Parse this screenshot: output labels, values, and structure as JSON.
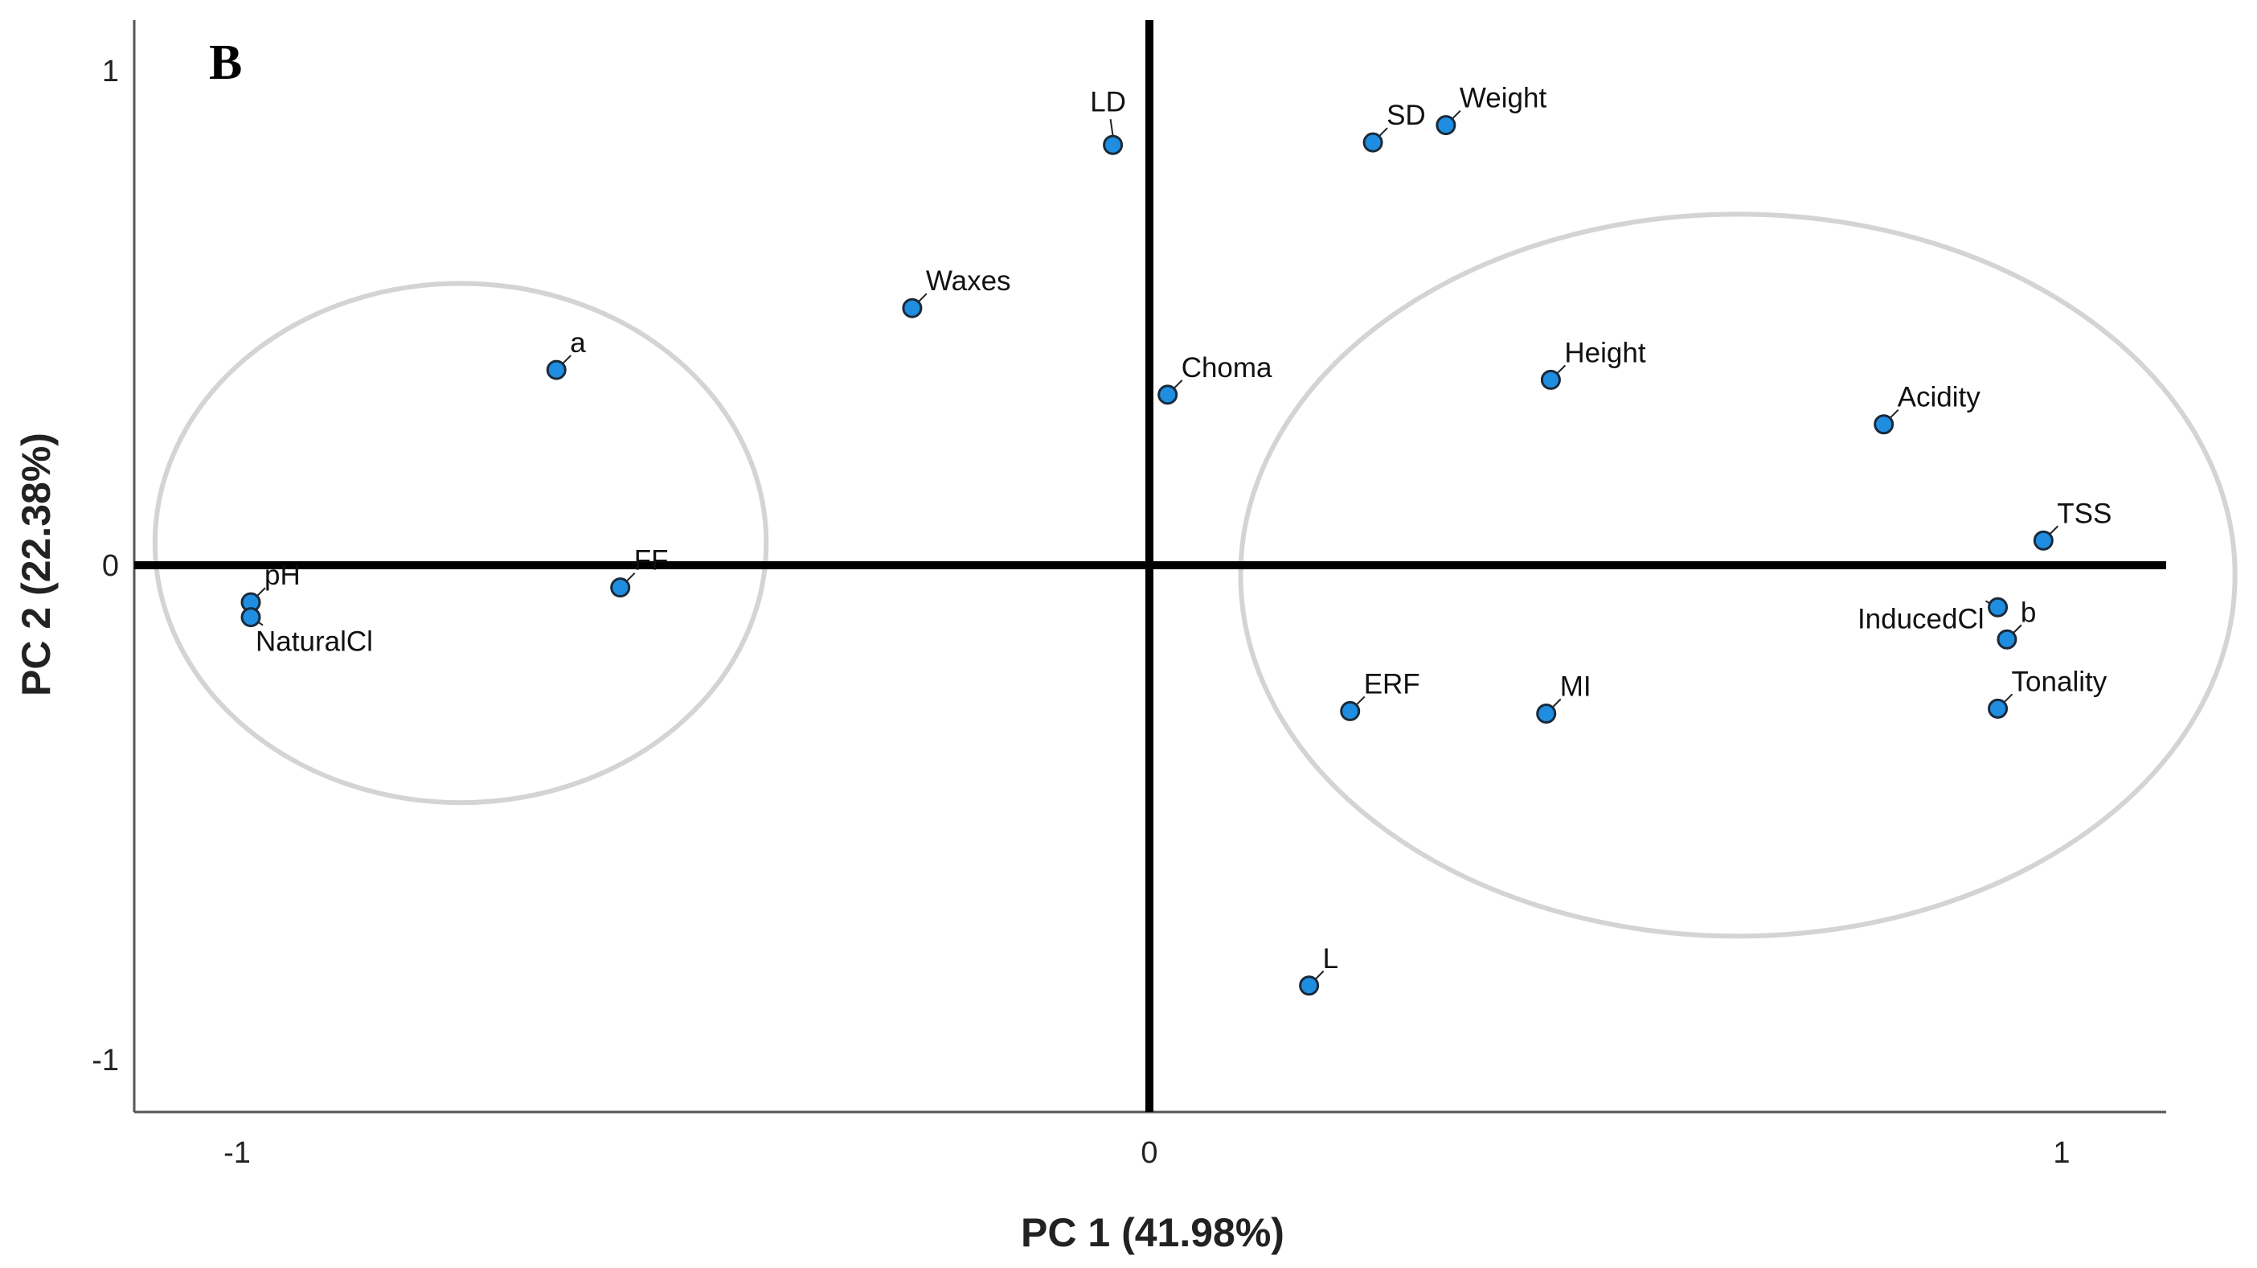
{
  "chart_data": {
    "type": "scatter",
    "panel_label": "B",
    "xlabel": "PC 1 (41.98%)",
    "ylabel": "PC 2 (22.38%)",
    "xlim": [
      -1.11,
      1.11
    ],
    "ylim": [
      -1.11,
      1.11
    ],
    "x_ticks": [
      {
        "value": -1,
        "label": "-1"
      },
      {
        "value": 0,
        "label": "0"
      },
      {
        "value": 1,
        "label": "1"
      }
    ],
    "y_ticks": [
      {
        "value": -1,
        "label": "-1"
      },
      {
        "value": 0,
        "label": "0"
      },
      {
        "value": 1,
        "label": "1"
      }
    ],
    "grid": false,
    "marker_color": "#1f8ee0",
    "marker_edge_color": "#1a2a3a",
    "group_outline_color": "#d4d4d4",
    "reference_lines": [
      {
        "axis": "x",
        "value": 0
      },
      {
        "axis": "y",
        "value": 0
      }
    ],
    "points": [
      {
        "label": "LD",
        "x": -0.04,
        "y": 0.85,
        "label_dir": "up"
      },
      {
        "label": "SD",
        "x": 0.245,
        "y": 0.855,
        "label_dir": "upright"
      },
      {
        "label": "Weight",
        "x": 0.325,
        "y": 0.89,
        "label_dir": "upright"
      },
      {
        "label": "Waxes",
        "x": -0.26,
        "y": 0.52,
        "label_dir": "upright"
      },
      {
        "label": "a",
        "x": -0.65,
        "y": 0.395,
        "label_dir": "upright"
      },
      {
        "label": "Choma",
        "x": 0.02,
        "y": 0.345,
        "label_dir": "upright"
      },
      {
        "label": "Height",
        "x": 0.44,
        "y": 0.375,
        "label_dir": "upright"
      },
      {
        "label": "Acidity",
        "x": 0.805,
        "y": 0.285,
        "label_dir": "upright"
      },
      {
        "label": "TSS",
        "x": 0.98,
        "y": 0.05,
        "label_dir": "upright"
      },
      {
        "label": "FF",
        "x": -0.58,
        "y": -0.045,
        "label_dir": "upright"
      },
      {
        "label": "pH",
        "x": -0.985,
        "y": -0.075,
        "label_dir": "upright"
      },
      {
        "label": "NaturalCl",
        "x": -0.985,
        "y": -0.105,
        "label_dir": "downright"
      },
      {
        "label": "InducedCl",
        "x": 0.93,
        "y": -0.085,
        "label_dir": "left"
      },
      {
        "label": "b",
        "x": 0.94,
        "y": -0.15,
        "label_dir": "upright"
      },
      {
        "label": "Tonality",
        "x": 0.93,
        "y": -0.29,
        "label_dir": "upright"
      },
      {
        "label": "ERF",
        "x": 0.22,
        "y": -0.295,
        "label_dir": "upright"
      },
      {
        "label": "MI",
        "x": 0.435,
        "y": -0.3,
        "label_dir": "upright"
      },
      {
        "label": "L",
        "x": 0.175,
        "y": -0.85,
        "label_dir": "upright"
      }
    ],
    "groups": [
      {
        "cx": -0.755,
        "cy": 0.045,
        "rx": 0.335,
        "ry": 0.525
      },
      {
        "cx": 0.645,
        "cy": -0.02,
        "rx": 0.545,
        "ry": 0.73
      }
    ]
  }
}
